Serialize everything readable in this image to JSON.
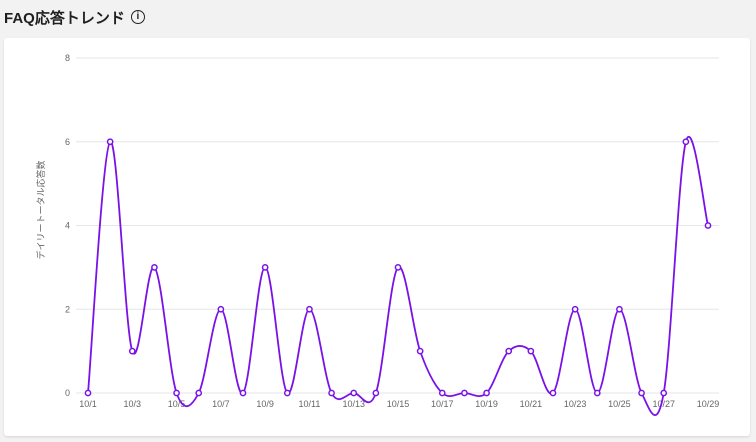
{
  "header": {
    "title": "FAQ応答トレンド",
    "info_icon": "info-icon"
  },
  "colors": {
    "line": "#7a12e8",
    "grid": "#e6e6e6",
    "background": "#f2f2f2"
  },
  "chart_data": {
    "type": "line",
    "title": "",
    "xlabel": "",
    "ylabel": "デイリートータル応答数",
    "ylim": [
      0,
      8
    ],
    "yticks": [
      0,
      2,
      4,
      6,
      8
    ],
    "x": [
      "10/1",
      "10/2",
      "10/3",
      "10/4",
      "10/5",
      "10/6",
      "10/7",
      "10/8",
      "10/9",
      "10/10",
      "10/11",
      "10/12",
      "10/13",
      "10/14",
      "10/15",
      "10/16",
      "10/17",
      "10/18",
      "10/19",
      "10/20",
      "10/21",
      "10/22",
      "10/23",
      "10/24",
      "10/25",
      "10/26",
      "10/27",
      "10/28",
      "10/29"
    ],
    "xtick_labels": [
      "10/1",
      "10/3",
      "10/5",
      "10/7",
      "10/9",
      "10/11",
      "10/13",
      "10/15",
      "10/17",
      "10/19",
      "10/21",
      "10/23",
      "10/25",
      "10/27",
      "10/29"
    ],
    "values": [
      0,
      6,
      1,
      3,
      0,
      0,
      2,
      0,
      3,
      0,
      2,
      0,
      0,
      0,
      3,
      1,
      0,
      0,
      0,
      1,
      1,
      0,
      2,
      0,
      2,
      0,
      0,
      6,
      4
    ],
    "grid": "horizontal",
    "legend": "none"
  }
}
